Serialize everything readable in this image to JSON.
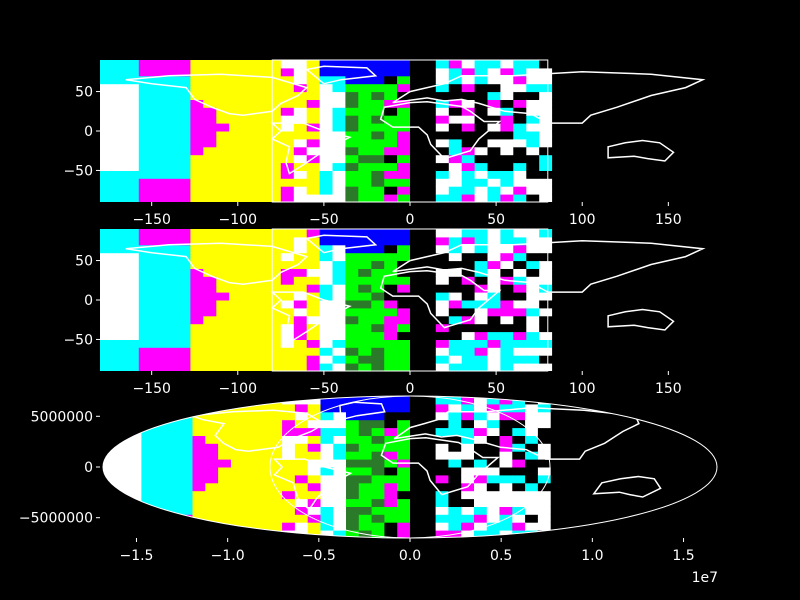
{
  "chart_data": [
    {
      "type": "heatmap",
      "title": "",
      "xlabel": "",
      "ylabel": "",
      "xlim": [
        -180,
        180
      ],
      "ylim": [
        -90,
        90
      ],
      "x_ticks": [
        -150,
        -100,
        -50,
        0,
        50,
        100,
        150
      ],
      "y_ticks": [
        50,
        0,
        -50
      ],
      "x_tick_labels": [
        "−150",
        "−100",
        "−50",
        "0",
        "50",
        "100",
        "150"
      ],
      "y_tick_labels": [
        "50",
        "0",
        "−50"
      ],
      "inner_box_x": [
        -80,
        80
      ],
      "projection": "plate carree",
      "grid": false
    },
    {
      "type": "heatmap",
      "title": "",
      "xlabel": "",
      "ylabel": "",
      "xlim": [
        -180,
        180
      ],
      "ylim": [
        -90,
        90
      ],
      "x_ticks": [
        -150,
        -100,
        -50,
        0,
        50,
        100,
        150
      ],
      "y_ticks": [
        50,
        0,
        -50
      ],
      "x_tick_labels": [
        "−150",
        "−100",
        "−50",
        "0",
        "50",
        "100",
        "150"
      ],
      "y_tick_labels": [
        "50",
        "0",
        "−50"
      ],
      "inner_box_x": [
        -80,
        80
      ],
      "projection": "plate carree",
      "grid": false
    },
    {
      "type": "heatmap",
      "title": "",
      "xlabel": "",
      "ylabel": "",
      "xlim": [
        -17000000,
        17000000
      ],
      "ylim": [
        -7000000,
        7000000
      ],
      "x_ticks": [
        -15000000,
        -10000000,
        -5000000,
        0,
        5000000,
        10000000,
        15000000
      ],
      "y_ticks": [
        5000000,
        0,
        -5000000
      ],
      "x_tick_labels": [
        "−1.5",
        "−1.0",
        "−0.5",
        "0.0",
        "0.5",
        "1.0",
        "1.5"
      ],
      "y_tick_labels": [
        "5000000",
        "0",
        "−5000000"
      ],
      "x_offset_label": "1e7",
      "projection": "mollweide",
      "grid": false
    }
  ],
  "colors": {
    "background": "#000000",
    "text": "#ffffff",
    "palette": [
      "#ffff00",
      "#ff00ff",
      "#00ffff",
      "#ffffff",
      "#00ff00",
      "#0000ff",
      "#000000",
      "#ff0000"
    ]
  }
}
